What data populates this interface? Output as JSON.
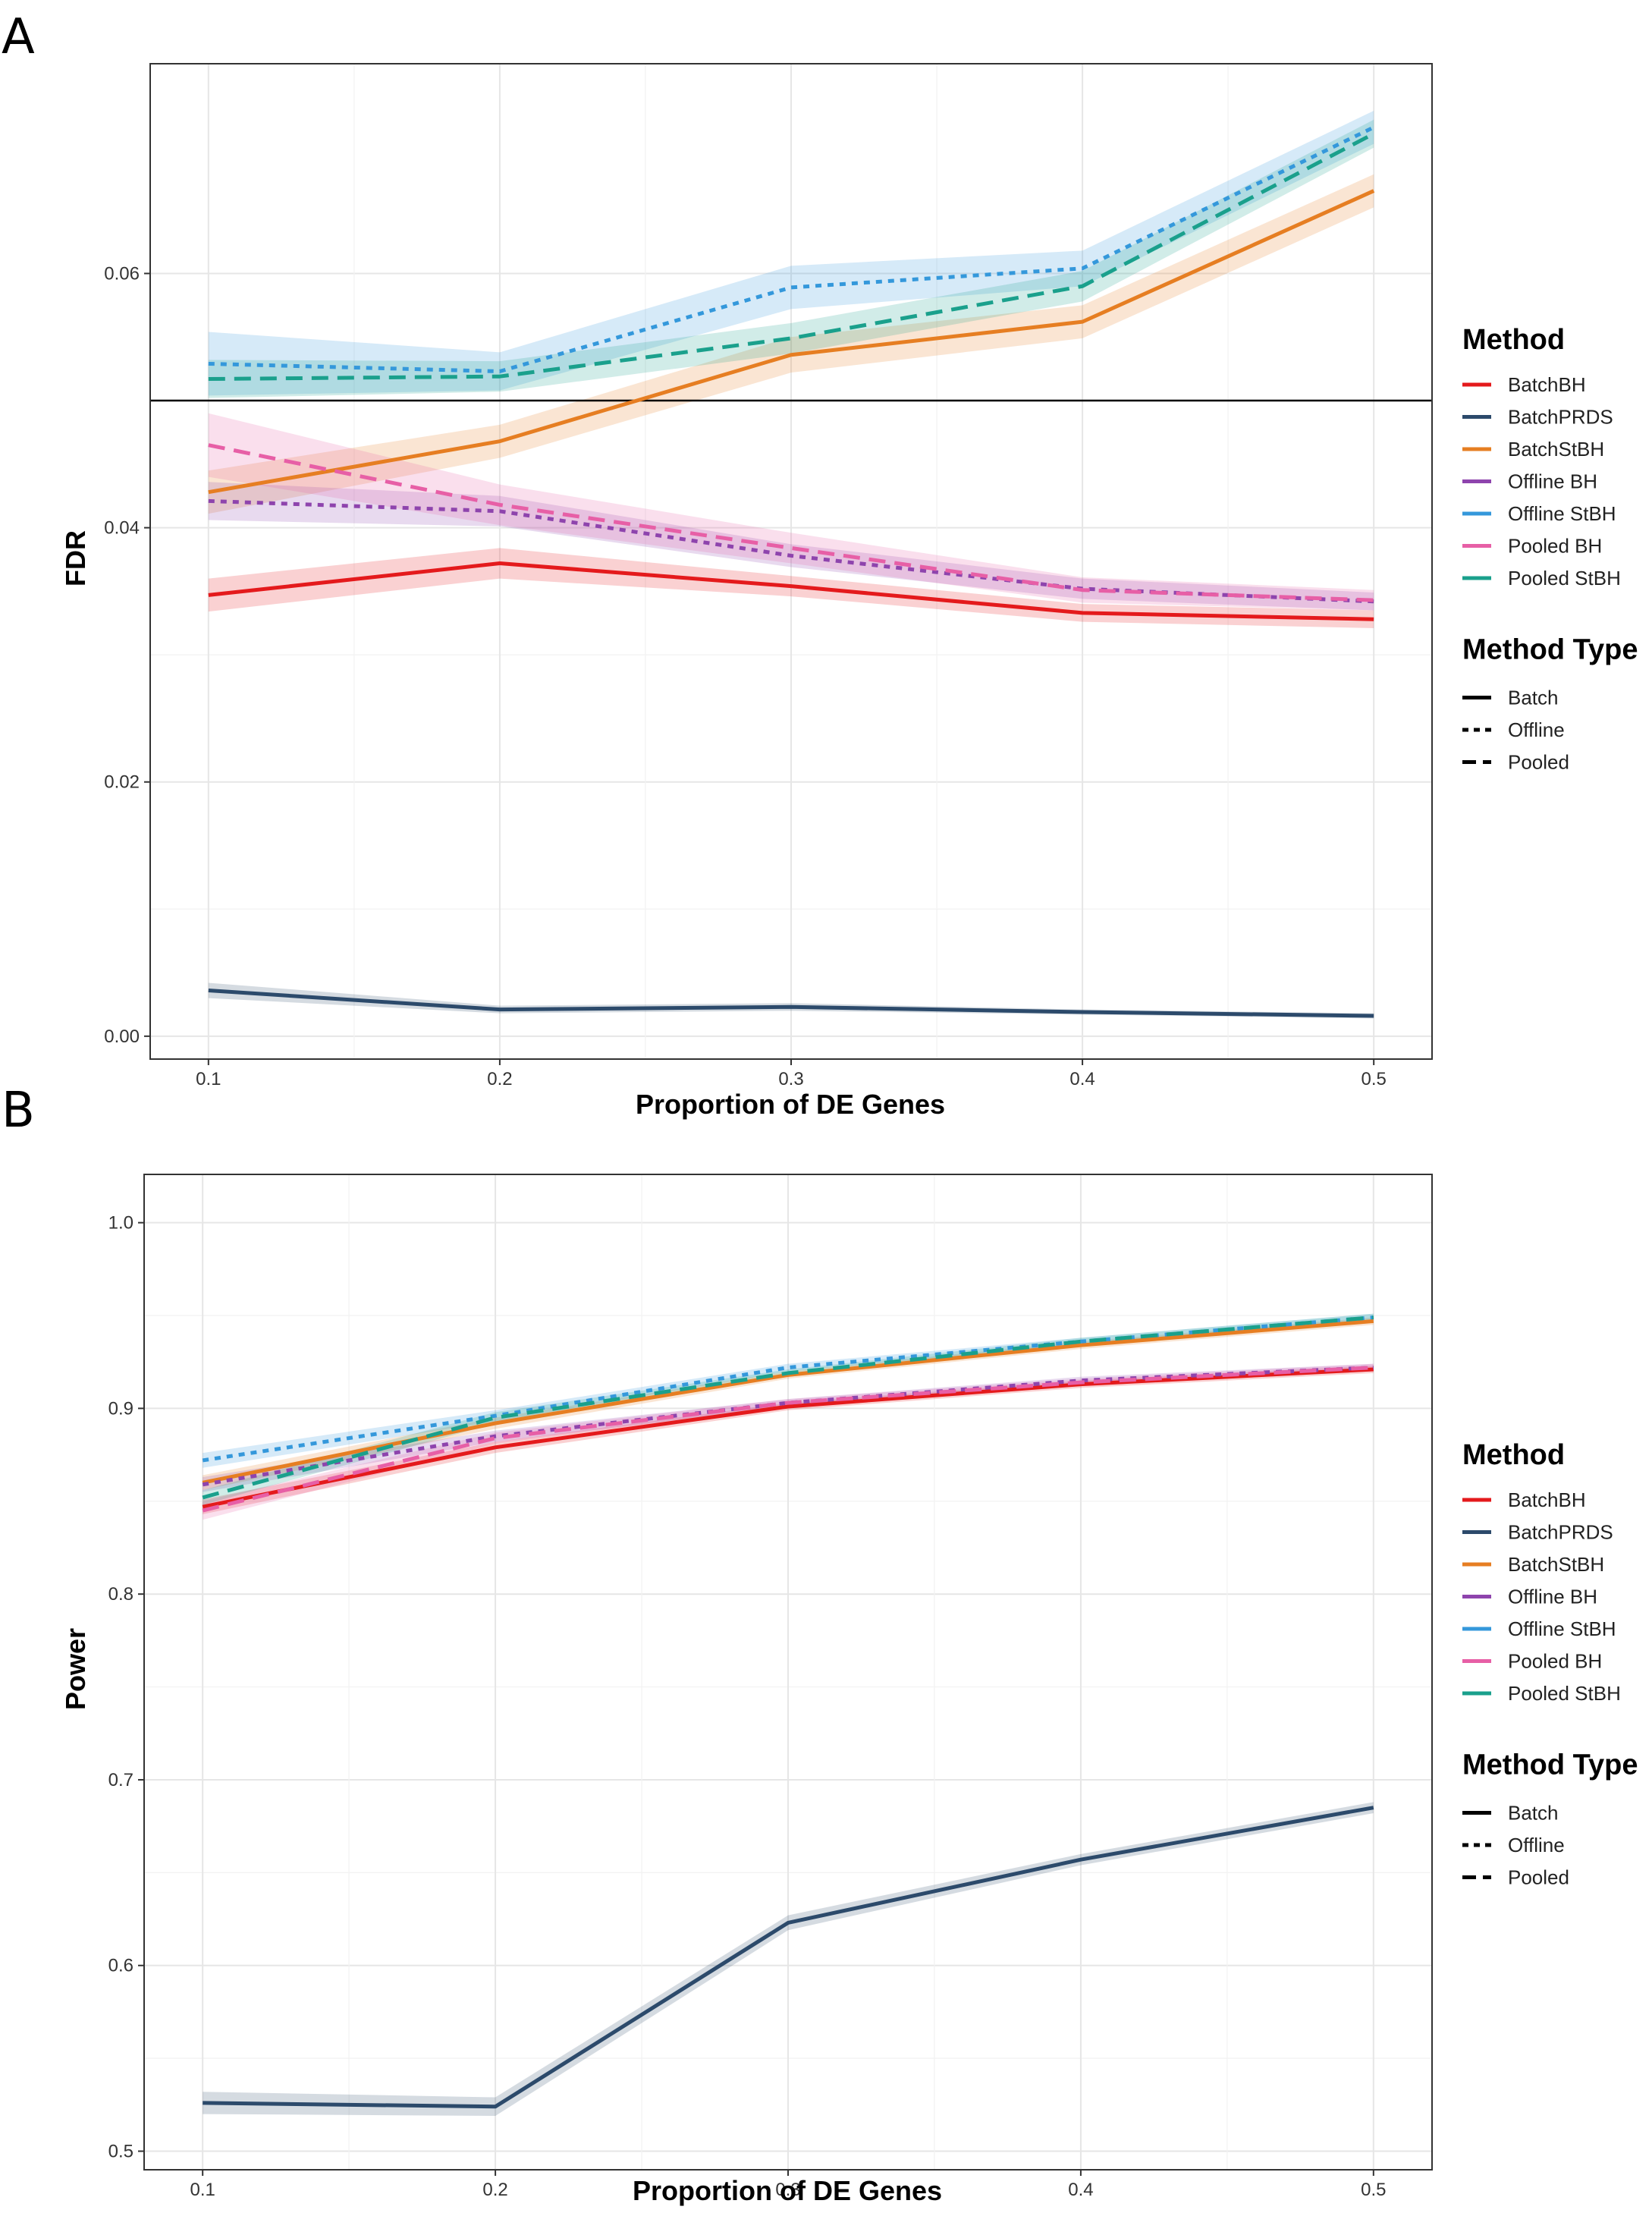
{
  "chart_data": [
    {
      "panel": "A",
      "type": "line",
      "xlabel": "Proportion of DE Genes",
      "ylabel": "FDR",
      "x": [
        0.1,
        0.2,
        0.3,
        0.4,
        0.5
      ],
      "xticks": [
        "0.1",
        "0.2",
        "0.3",
        "0.4",
        "0.5"
      ],
      "xlim": [
        0.08,
        0.52
      ],
      "yticks": [
        "0.00",
        "0.02",
        "0.04",
        "0.06"
      ],
      "ytick_values": [
        0.0,
        0.02,
        0.04,
        0.06
      ],
      "ylim": [
        -0.0018,
        0.0765
      ],
      "grid": true,
      "hline": 0.05,
      "series": [
        {
          "name": "BatchBH",
          "color": "#e41a1c",
          "linetype": "solid",
          "values": [
            0.0347,
            0.0372,
            0.0354,
            0.0333,
            0.0328
          ],
          "band": [
            0.0013,
            0.0012,
            0.0008,
            0.0007,
            0.0007
          ]
        },
        {
          "name": "BatchPRDS",
          "color": "#2c4a6b",
          "linetype": "solid",
          "values": [
            0.0036,
            0.0021,
            0.0023,
            0.0019,
            0.0016
          ],
          "band": [
            0.0006,
            0.0003,
            0.0003,
            0.0002,
            0.0002
          ]
        },
        {
          "name": "BatchStBH",
          "color": "#e67e22",
          "linetype": "solid",
          "values": [
            0.0428,
            0.0468,
            0.0536,
            0.0562,
            0.0665
          ],
          "band": [
            0.0017,
            0.0013,
            0.0014,
            0.0013,
            0.0013
          ]
        },
        {
          "name": "Offline BH",
          "color": "#8e44ad",
          "linetype": "dotted",
          "values": [
            0.0421,
            0.0413,
            0.0378,
            0.0352,
            0.0342
          ],
          "band": [
            0.0015,
            0.0012,
            0.0009,
            0.0008,
            0.0007
          ]
        },
        {
          "name": "Offline StBH",
          "color": "#3498db",
          "linetype": "dotted",
          "values": [
            0.0529,
            0.0523,
            0.0589,
            0.0604,
            0.0715
          ],
          "band": [
            0.0025,
            0.0015,
            0.0017,
            0.0014,
            0.0013
          ]
        },
        {
          "name": "Pooled BH",
          "color": "#e75fa6",
          "linetype": "dashed",
          "values": [
            0.0465,
            0.0418,
            0.0384,
            0.0351,
            0.0343
          ],
          "band": [
            0.0025,
            0.0016,
            0.0012,
            0.001,
            0.0008
          ]
        },
        {
          "name": "Pooled StBH",
          "color": "#1aa08c",
          "linetype": "dashed",
          "values": [
            0.0517,
            0.0519,
            0.0549,
            0.059,
            0.071
          ],
          "band": [
            0.0015,
            0.0012,
            0.0012,
            0.0012,
            0.0011
          ]
        }
      ]
    },
    {
      "panel": "B",
      "type": "line",
      "xlabel": "Proportion of DE Genes",
      "ylabel": "Power",
      "x": [
        0.1,
        0.2,
        0.3,
        0.4,
        0.5
      ],
      "xticks": [
        "0.1",
        "0.2",
        "0.3",
        "0.4",
        "0.5"
      ],
      "xlim": [
        0.08,
        0.52
      ],
      "yticks": [
        "0.5",
        "0.6",
        "0.7",
        "0.8",
        "0.9",
        "1.0"
      ],
      "ytick_values": [
        0.5,
        0.6,
        0.7,
        0.8,
        0.9,
        1.0
      ],
      "ylim": [
        0.49,
        1.026
      ],
      "grid": true,
      "series": [
        {
          "name": "BatchBH",
          "color": "#e41a1c",
          "linetype": "solid",
          "values": [
            0.847,
            0.879,
            0.901,
            0.913,
            0.921
          ],
          "band": [
            0.004,
            0.003,
            0.002,
            0.002,
            0.002
          ]
        },
        {
          "name": "BatchPRDS",
          "color": "#2c4a6b",
          "linetype": "solid",
          "values": [
            0.526,
            0.524,
            0.623,
            0.657,
            0.685
          ],
          "band": [
            0.006,
            0.005,
            0.004,
            0.003,
            0.003
          ]
        },
        {
          "name": "BatchStBH",
          "color": "#e67e22",
          "linetype": "solid",
          "values": [
            0.86,
            0.892,
            0.918,
            0.934,
            0.947
          ],
          "band": [
            0.004,
            0.003,
            0.002,
            0.002,
            0.002
          ]
        },
        {
          "name": "Offline BH",
          "color": "#8e44ad",
          "linetype": "dotted",
          "values": [
            0.859,
            0.885,
            0.903,
            0.915,
            0.922
          ],
          "band": [
            0.004,
            0.003,
            0.002,
            0.002,
            0.002
          ]
        },
        {
          "name": "Offline StBH",
          "color": "#3498db",
          "linetype": "dotted",
          "values": [
            0.872,
            0.896,
            0.922,
            0.936,
            0.949
          ],
          "band": [
            0.004,
            0.003,
            0.002,
            0.002,
            0.002
          ]
        },
        {
          "name": "Pooled BH",
          "color": "#e75fa6",
          "linetype": "dashed",
          "values": [
            0.845,
            0.884,
            0.903,
            0.914,
            0.922
          ],
          "band": [
            0.005,
            0.003,
            0.002,
            0.002,
            0.002
          ]
        },
        {
          "name": "Pooled StBH",
          "color": "#1aa08c",
          "linetype": "dashed",
          "values": [
            0.852,
            0.895,
            0.919,
            0.936,
            0.949
          ],
          "band": [
            0.004,
            0.003,
            0.002,
            0.002,
            0.002
          ]
        }
      ]
    }
  ],
  "panels": [
    {
      "letter": "A"
    },
    {
      "letter": "B"
    }
  ],
  "legend": {
    "method_title": "Method",
    "methods": [
      "BatchBH",
      "BatchPRDS",
      "BatchStBH",
      "Offline BH",
      "Offline StBH",
      "Pooled BH",
      "Pooled StBH"
    ],
    "method_colors": [
      "#e41a1c",
      "#2c4a6b",
      "#e67e22",
      "#8e44ad",
      "#3498db",
      "#e75fa6",
      "#1aa08c"
    ],
    "type_title": "Method Type",
    "types": [
      "Batch",
      "Offline",
      "Pooled"
    ],
    "type_linetypes": [
      "solid",
      "dotted",
      "dashed"
    ]
  }
}
